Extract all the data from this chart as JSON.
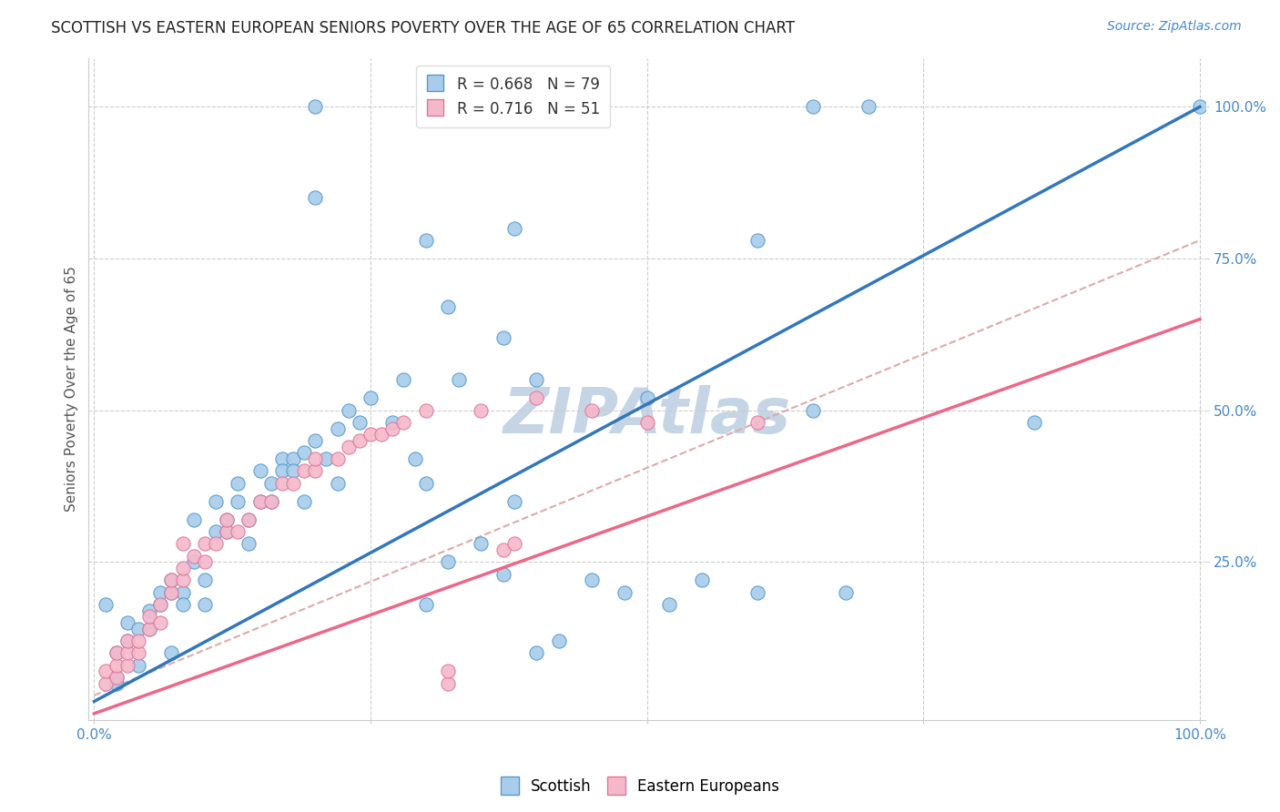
{
  "title": "SCOTTISH VS EASTERN EUROPEAN SENIORS POVERTY OVER THE AGE OF 65 CORRELATION CHART",
  "source": "Source: ZipAtlas.com",
  "ylabel": "Seniors Poverty Over the Age of 65",
  "watermark": "ZIPAtlas",
  "blue_R": 0.668,
  "blue_N": 79,
  "pink_R": 0.716,
  "pink_N": 51,
  "blue_color": "#A8CCEA",
  "pink_color": "#F5B8CA",
  "blue_edge_color": "#5599CC",
  "pink_edge_color": "#DD7799",
  "blue_line_color": "#3377BB",
  "pink_line_color": "#EE6688",
  "dash_line_color": "#DDAAAA",
  "blue_line": [
    0.0,
    1.0,
    0.02,
    1.0
  ],
  "pink_line": [
    0.0,
    1.0,
    0.0,
    0.65
  ],
  "dash_line": [
    0.0,
    1.0,
    0.03,
    0.78
  ],
  "blue_scatter_x": [
    0.01,
    0.02,
    0.02,
    0.02,
    0.03,
    0.03,
    0.04,
    0.04,
    0.05,
    0.05,
    0.06,
    0.06,
    0.07,
    0.07,
    0.07,
    0.08,
    0.08,
    0.09,
    0.09,
    0.1,
    0.1,
    0.11,
    0.11,
    0.12,
    0.12,
    0.13,
    0.13,
    0.14,
    0.14,
    0.15,
    0.15,
    0.16,
    0.16,
    0.17,
    0.17,
    0.18,
    0.18,
    0.19,
    0.19,
    0.2,
    0.21,
    0.22,
    0.22,
    0.23,
    0.24,
    0.25,
    0.27,
    0.28,
    0.29,
    0.3,
    0.3,
    0.32,
    0.33,
    0.35,
    0.37,
    0.38,
    0.4,
    0.42,
    0.45,
    0.48,
    0.5,
    0.52,
    0.55,
    0.6,
    0.65,
    0.68,
    0.3,
    0.32,
    0.37,
    0.2,
    0.38,
    0.65,
    0.7,
    1.0,
    0.85,
    0.4,
    0.2,
    0.38,
    0.6
  ],
  "blue_scatter_y": [
    0.18,
    0.06,
    0.1,
    0.05,
    0.12,
    0.15,
    0.14,
    0.08,
    0.17,
    0.14,
    0.18,
    0.2,
    0.2,
    0.22,
    0.1,
    0.2,
    0.18,
    0.32,
    0.25,
    0.22,
    0.18,
    0.3,
    0.35,
    0.3,
    0.32,
    0.35,
    0.38,
    0.32,
    0.28,
    0.35,
    0.4,
    0.35,
    0.38,
    0.42,
    0.4,
    0.42,
    0.4,
    0.43,
    0.35,
    0.45,
    0.42,
    0.47,
    0.38,
    0.5,
    0.48,
    0.52,
    0.48,
    0.55,
    0.42,
    0.38,
    0.18,
    0.25,
    0.55,
    0.28,
    0.23,
    0.35,
    0.55,
    0.12,
    0.22,
    0.2,
    0.52,
    0.18,
    0.22,
    0.2,
    0.5,
    0.2,
    0.78,
    0.67,
    0.62,
    1.0,
    1.0,
    1.0,
    1.0,
    1.0,
    0.48,
    0.1,
    0.85,
    0.8,
    0.78
  ],
  "pink_scatter_x": [
    0.01,
    0.01,
    0.02,
    0.02,
    0.02,
    0.03,
    0.03,
    0.03,
    0.04,
    0.04,
    0.05,
    0.05,
    0.06,
    0.06,
    0.07,
    0.07,
    0.08,
    0.08,
    0.08,
    0.09,
    0.1,
    0.1,
    0.11,
    0.12,
    0.12,
    0.13,
    0.14,
    0.15,
    0.16,
    0.17,
    0.18,
    0.19,
    0.2,
    0.2,
    0.22,
    0.23,
    0.24,
    0.25,
    0.26,
    0.27,
    0.28,
    0.3,
    0.32,
    0.32,
    0.35,
    0.37,
    0.38,
    0.4,
    0.45,
    0.5,
    0.6
  ],
  "pink_scatter_y": [
    0.05,
    0.07,
    0.06,
    0.08,
    0.1,
    0.08,
    0.1,
    0.12,
    0.1,
    0.12,
    0.14,
    0.16,
    0.15,
    0.18,
    0.2,
    0.22,
    0.22,
    0.24,
    0.28,
    0.26,
    0.25,
    0.28,
    0.28,
    0.3,
    0.32,
    0.3,
    0.32,
    0.35,
    0.35,
    0.38,
    0.38,
    0.4,
    0.4,
    0.42,
    0.42,
    0.44,
    0.45,
    0.46,
    0.46,
    0.47,
    0.48,
    0.5,
    0.05,
    0.07,
    0.5,
    0.27,
    0.28,
    0.52,
    0.5,
    0.48,
    0.48
  ],
  "xlim": [
    -0.005,
    1.005
  ],
  "ylim": [
    -0.01,
    1.08
  ],
  "xticks": [
    0.0,
    0.25,
    0.5,
    0.75,
    1.0
  ],
  "yticks": [
    0.25,
    0.5,
    0.75,
    1.0
  ],
  "grid_color": "#CCCCCC",
  "bg_color": "#FFFFFF",
  "title_fontsize": 12,
  "axis_label_fontsize": 11,
  "tick_fontsize": 11,
  "legend_fontsize": 12,
  "watermark_fontsize": 50,
  "watermark_color": "#C5D5E5",
  "source_fontsize": 10,
  "tick_color": "#4488CC"
}
